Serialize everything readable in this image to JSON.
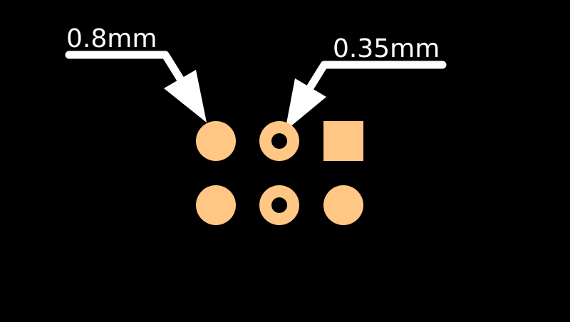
{
  "colors": {
    "background": "#000000",
    "pad": "#ffc783",
    "arrow": "#ffffff"
  },
  "annotations": [
    {
      "label": "0.8mm"
    },
    {
      "label": "0.35mm"
    }
  ],
  "pads": [
    {
      "row": 1,
      "col": 1,
      "shape": "circle",
      "drilled": false
    },
    {
      "row": 1,
      "col": 2,
      "shape": "circle",
      "drilled": true
    },
    {
      "row": 1,
      "col": 3,
      "shape": "square",
      "drilled": false
    },
    {
      "row": 2,
      "col": 1,
      "shape": "circle",
      "drilled": false
    },
    {
      "row": 2,
      "col": 2,
      "shape": "circle",
      "drilled": true
    },
    {
      "row": 2,
      "col": 3,
      "shape": "circle",
      "drilled": false
    }
  ]
}
